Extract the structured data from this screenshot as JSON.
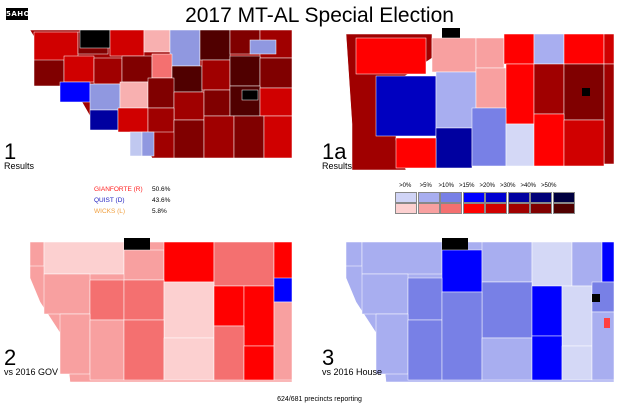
{
  "logo": "5AHO",
  "title": "2017 MT-AL Special Election",
  "panels": [
    {
      "num": "1",
      "sub": "Results"
    },
    {
      "num": "1a",
      "sub": "Results"
    },
    {
      "num": "2",
      "sub": "vs 2016 GOV"
    },
    {
      "num": "3",
      "sub": "vs 2016 House"
    }
  ],
  "results": [
    {
      "name": "GIANFORTE (R)",
      "pct": "50.6%",
      "color": "#ff2020"
    },
    {
      "name": "QUIST (D)",
      "pct": "43.6%",
      "color": "#2020c0"
    },
    {
      "name": "WICKS (L)",
      "pct": "5.8%",
      "color": "#f0a040"
    }
  ],
  "scale": {
    "labels": [
      ">0%",
      ">5%",
      ">10%",
      ">15%",
      ">20%",
      ">30%",
      ">40%",
      ">50%"
    ],
    "dem_colors": [
      "#d0d4f6",
      "#a8aef0",
      "#7880e6",
      "#0000ff",
      "#0000d0",
      "#0000a0",
      "#000078",
      "#000040"
    ],
    "rep_colors": [
      "#fcd0d0",
      "#f8a0a0",
      "#f47070",
      "#ff0000",
      "#d00000",
      "#a00000",
      "#800000",
      "#500000"
    ]
  },
  "footer": "624/681 precincts reporting"
}
